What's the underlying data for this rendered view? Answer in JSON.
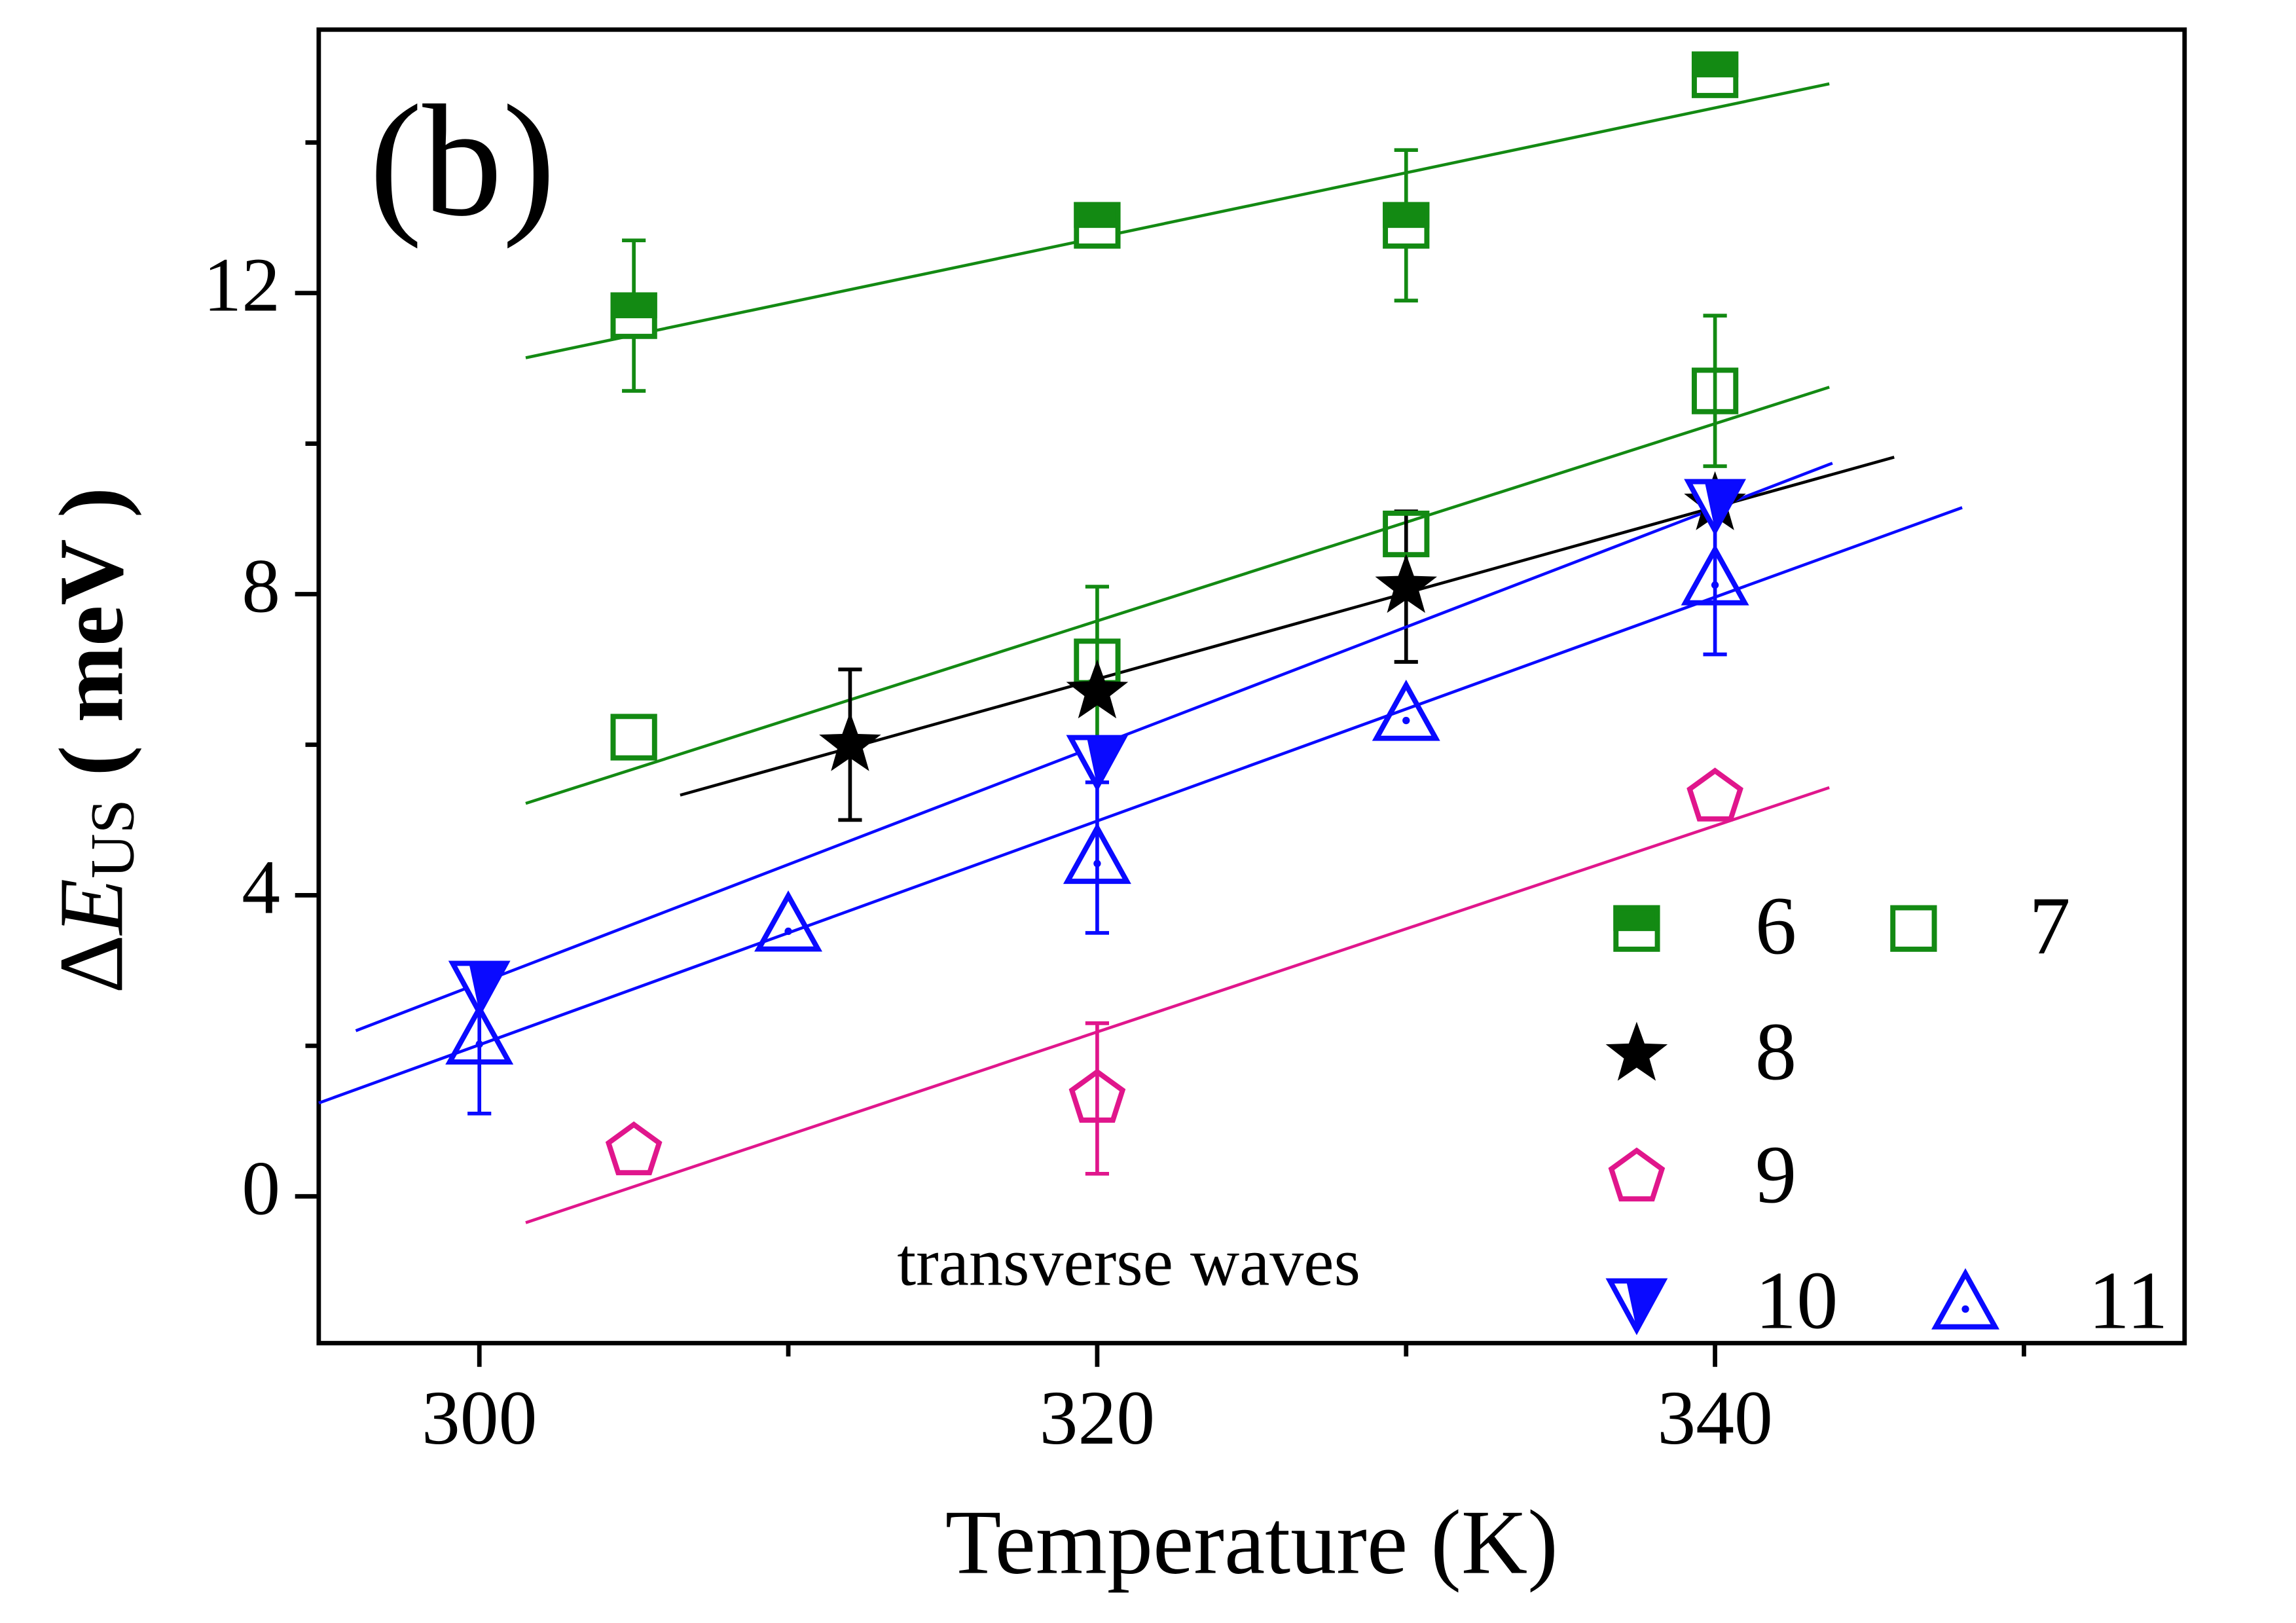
{
  "chart_data": {
    "type": "scatter",
    "panel_label": "(b)",
    "annotation": "transverse waves",
    "xlabel": "Temperature (K)",
    "ylabel_parts": [
      "Δ",
      "E",
      "US",
      " ( meV )"
    ],
    "xlim": [
      294.8,
      355.2
    ],
    "ylim": [
      -1.95,
      15.5
    ],
    "xticks": [
      300,
      320,
      340
    ],
    "xminor": [
      310,
      330,
      350
    ],
    "yticks": [
      0,
      4,
      8,
      12
    ],
    "yminor": [
      2,
      6,
      10,
      14
    ],
    "legend": "lower right",
    "series": [
      {
        "name": "6",
        "color": "#138a13",
        "marker": "half-square",
        "x": [
          305,
          320,
          330,
          340
        ],
        "values": [
          11.7,
          12.9,
          12.9,
          14.9
        ],
        "errors": [
          1,
          null,
          1,
          null
        ],
        "fit": {
          "x": [
            301.5,
            343.7
          ],
          "y": [
            11.14,
            14.78
          ]
        }
      },
      {
        "name": "7",
        "color": "#138a13",
        "marker": "square",
        "x": [
          305,
          320,
          330,
          340
        ],
        "values": [
          6.1,
          7.1,
          8.8,
          10.7
        ],
        "errors": [
          null,
          1,
          null,
          1
        ],
        "fit": {
          "x": [
            301.5,
            343.7
          ],
          "y": [
            5.22,
            10.75
          ]
        }
      },
      {
        "name": "8",
        "color": "#000000",
        "marker": "star",
        "x": [
          312,
          320,
          330,
          340
        ],
        "values": [
          6.0,
          6.7,
          8.1,
          9.2
        ],
        "errors": [
          1,
          null,
          1,
          null
        ],
        "fit": {
          "x": [
            306.5,
            345.8
          ],
          "y": [
            5.33,
            9.82
          ]
        }
      },
      {
        "name": "9",
        "color": "#e0168c",
        "marker": "pentagon",
        "x": [
          305,
          320,
          340
        ],
        "values": [
          0.6,
          1.3,
          5.3
        ],
        "errors": [
          null,
          1,
          null
        ],
        "fit": {
          "x": [
            301.5,
            343.7
          ],
          "y": [
            -0.35,
            5.43
          ]
        }
      },
      {
        "name": "10",
        "color": "#0a0aff",
        "marker": "down-triangle",
        "x": [
          300,
          320,
          340
        ],
        "values": [
          2.8,
          5.8,
          9.2
        ],
        "errors": [
          null,
          null,
          null
        ],
        "fit": {
          "x": [
            296,
            343.8
          ],
          "y": [
            2.2,
            9.74
          ]
        }
      },
      {
        "name": "11",
        "color": "#0a0aff",
        "marker": "up-triangle-dot",
        "x": [
          300,
          310,
          320,
          330,
          340
        ],
        "values": [
          2.1,
          3.6,
          4.5,
          6.4,
          8.2
        ],
        "errors": [
          1,
          null,
          1,
          null,
          1
        ],
        "fit": {
          "x": [
            294.8,
            348
          ],
          "y": [
            1.24,
            9.15
          ]
        }
      }
    ]
  }
}
